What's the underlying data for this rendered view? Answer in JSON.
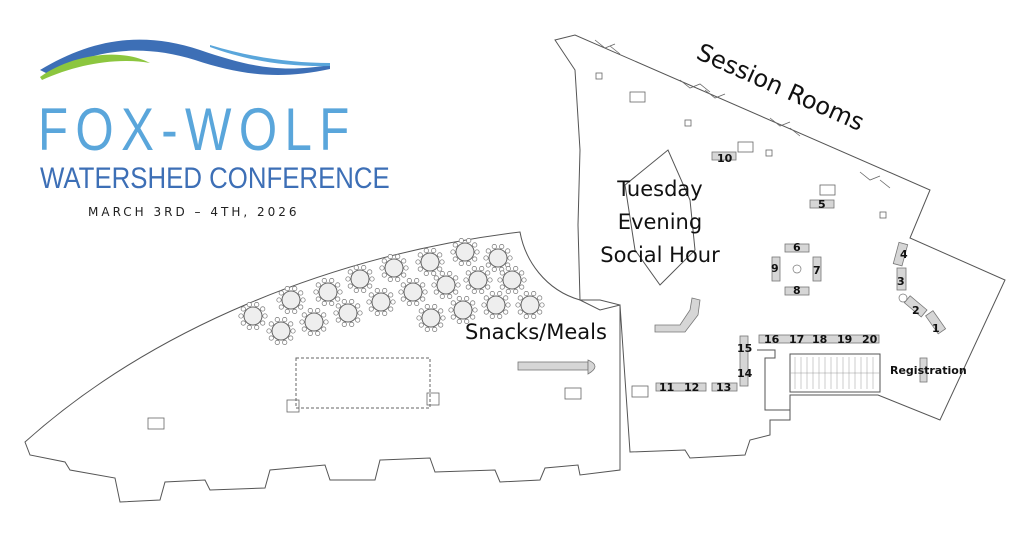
{
  "logo": {
    "title": "FOX-WOLF",
    "subtitle": "WATERSHED CONFERENCE",
    "dates": "MARCH 3RD – 4TH, 2026",
    "colors": {
      "dark_blue": "#3d6fb6",
      "light_blue": "#5aa6db",
      "green": "#8cc63f"
    }
  },
  "areas": {
    "session_rooms": "Session Rooms",
    "social_hour": [
      "Tuesday",
      "Evening",
      "Social Hour"
    ],
    "snacks_meals": "Snacks/Meals",
    "registration": "Registration"
  },
  "booths": [
    "1",
    "2",
    "3",
    "4",
    "5",
    "6",
    "7",
    "8",
    "9",
    "10",
    "11",
    "12",
    "13",
    "14",
    "15",
    "16",
    "17",
    "18",
    "19",
    "20"
  ]
}
